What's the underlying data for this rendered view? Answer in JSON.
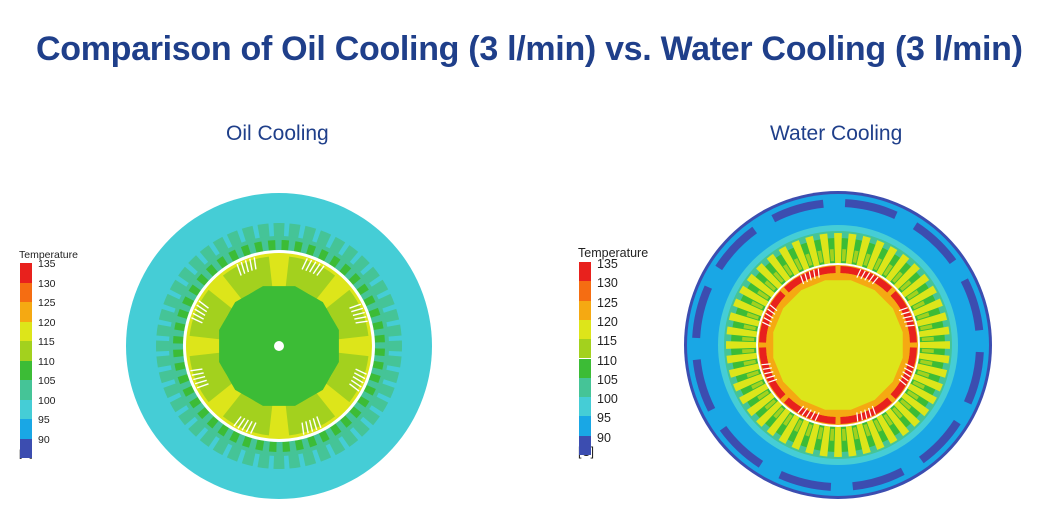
{
  "title": "Comparison of Oil Cooling (3 l/min) vs. Water Cooling (3 l/min)",
  "colors": {
    "t135": "#e8211d",
    "t130": "#f56d12",
    "t125": "#f5a912",
    "t120": "#dde51a",
    "t115": "#a3d11e",
    "t110": "#3cbc36",
    "t105": "#45c497",
    "t100": "#45cdd6",
    "t95": "#19a7e5",
    "t90": "#3c4db0"
  },
  "legend": {
    "title": "Temperature",
    "unit": "[C]",
    "levels": [
      "135",
      "130",
      "125",
      "120",
      "115",
      "110",
      "105",
      "100",
      "95",
      "90"
    ]
  },
  "panels": {
    "oil": {
      "title": "Oil Cooling",
      "housing_temp": 100,
      "outer_stator_temp": 105,
      "stator_tooth_temp": 105,
      "rotor_outer_temp": 120,
      "rotor_mid_temp": 115,
      "rotor_core_temp": 110
    },
    "water": {
      "title": "Water Cooling",
      "housing_temp": 95,
      "cooling_channel_temp": 90,
      "stator_back_temp": 105,
      "stator_tooth_temp": 120,
      "slot_temp": 110,
      "magnet_temp": 135,
      "rotor_outer_temp": 125,
      "rotor_core_temp": 120
    }
  }
}
